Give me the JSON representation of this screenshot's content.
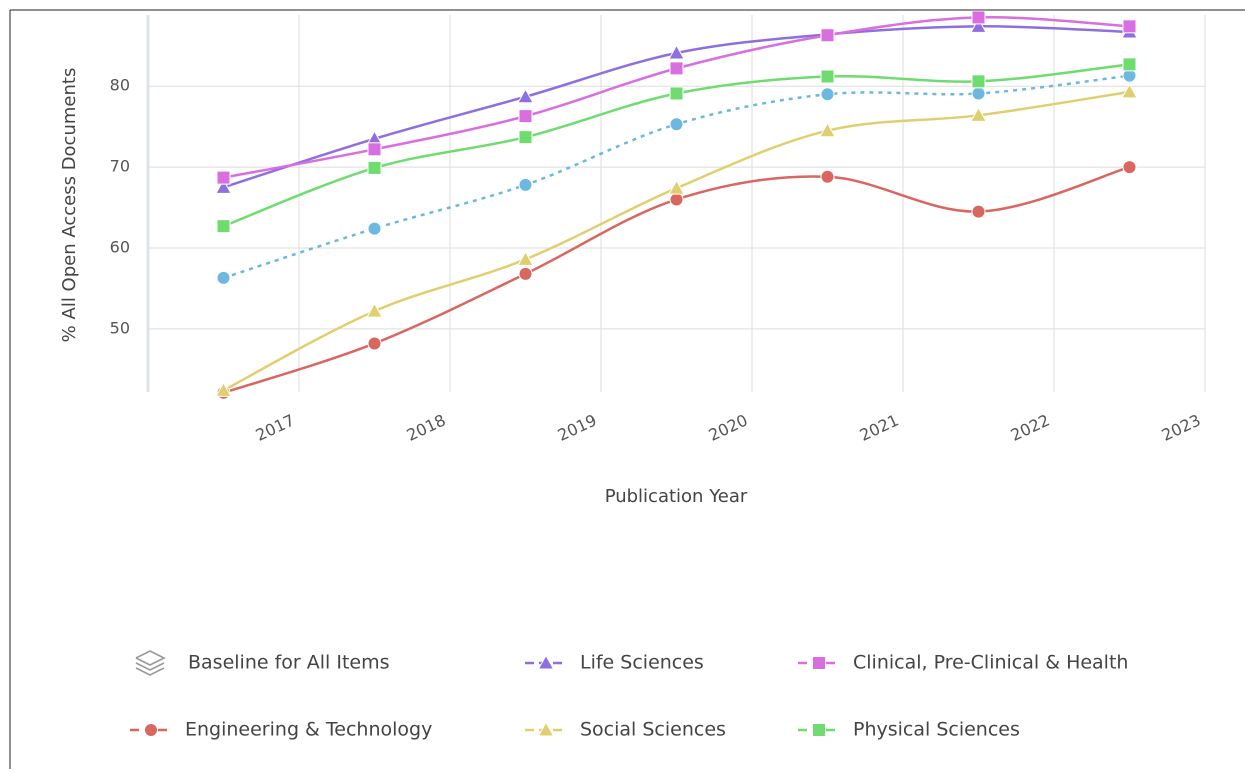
{
  "chart_data": {
    "type": "line",
    "x_label": "Publication Year",
    "y_label": "% All Open Access Documents",
    "categories": [
      "2017",
      "2018",
      "2019",
      "2020",
      "2021",
      "2022",
      "2023"
    ],
    "ylim": [
      42.2,
      88.8
    ],
    "yticks": [
      50,
      60,
      70,
      80
    ],
    "grid": true,
    "smooth": true,
    "legend": "bottom",
    "series": [
      {
        "name": "Baseline for All Items",
        "color": "#6cb8e0",
        "marker": "circle",
        "dash": "dotted",
        "values": [
          56.3,
          62.4,
          67.8,
          75.3,
          79.0,
          79.1,
          81.3
        ]
      },
      {
        "name": "Life Sciences",
        "color": "#8e6fe0",
        "marker": "triangle",
        "dash": "solid",
        "values": [
          67.5,
          73.5,
          78.7,
          84.1,
          86.4,
          87.4,
          86.7
        ]
      },
      {
        "name": "Clinical, Pre-Clinical & Health",
        "color": "#d96ee0",
        "marker": "square",
        "dash": "solid",
        "values": [
          68.7,
          72.2,
          76.3,
          82.2,
          86.3,
          88.5,
          87.4
        ]
      },
      {
        "name": "Engineering & Technology",
        "color": "#d9665f",
        "marker": "circle",
        "dash": "solid",
        "values": [
          42.1,
          48.2,
          56.8,
          66.0,
          68.8,
          64.5,
          70.0
        ]
      },
      {
        "name": "Social Sciences",
        "color": "#e0cf6e",
        "marker": "triangle",
        "dash": "solid",
        "values": [
          42.4,
          52.2,
          58.6,
          67.4,
          74.5,
          76.4,
          79.3
        ]
      },
      {
        "name": "Physical Sciences",
        "color": "#6fdc6f",
        "marker": "square",
        "dash": "solid",
        "values": [
          62.7,
          69.9,
          73.7,
          79.1,
          81.2,
          80.6,
          82.7
        ]
      }
    ]
  }
}
